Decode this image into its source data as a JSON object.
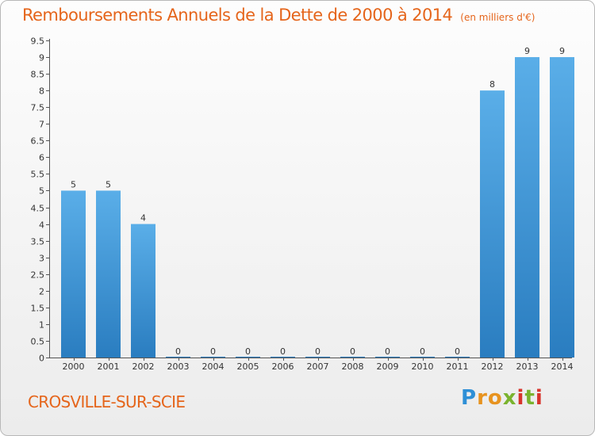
{
  "header": {
    "title": "Remboursements Annuels de la Dette de 2000 à 2014",
    "unit": "(en milliers d'€)"
  },
  "footer": {
    "commune": "CROSVILLE-SUR-SCIE",
    "logo_text": "Proxiti"
  },
  "colors": {
    "title": "#e5651b",
    "bar_light": "#5aaee8",
    "bar_dark": "#2a7dc0",
    "axis": "#555555"
  },
  "chart_data": {
    "type": "bar",
    "title": "Remboursements Annuels de la Dette de 2000 à 2014",
    "subtitle": "(en milliers d'€)",
    "xlabel": "",
    "ylabel": "",
    "categories": [
      "2000",
      "2001",
      "2002",
      "2003",
      "2004",
      "2005",
      "2006",
      "2007",
      "2008",
      "2009",
      "2010",
      "2011",
      "2012",
      "2013",
      "2014"
    ],
    "values": [
      5,
      5,
      4,
      0,
      0,
      0,
      0,
      0,
      0,
      0,
      0,
      0,
      8,
      9,
      9
    ],
    "data_labels": [
      "5",
      "5",
      "4",
      "0",
      "0",
      "0",
      "0",
      "0",
      "0",
      "0",
      "0",
      "0",
      "8",
      "9",
      "9"
    ],
    "ylim": [
      0,
      9.5
    ],
    "yticks": [
      "0",
      "0.5",
      "1",
      "1.5",
      "2",
      "2.5",
      "3",
      "3.5",
      "4",
      "4.5",
      "5",
      "5.5",
      "6",
      "6.5",
      "7",
      "7.5",
      "8",
      "8.5",
      "9",
      "9.5"
    ],
    "grid": false,
    "legend": "none"
  }
}
